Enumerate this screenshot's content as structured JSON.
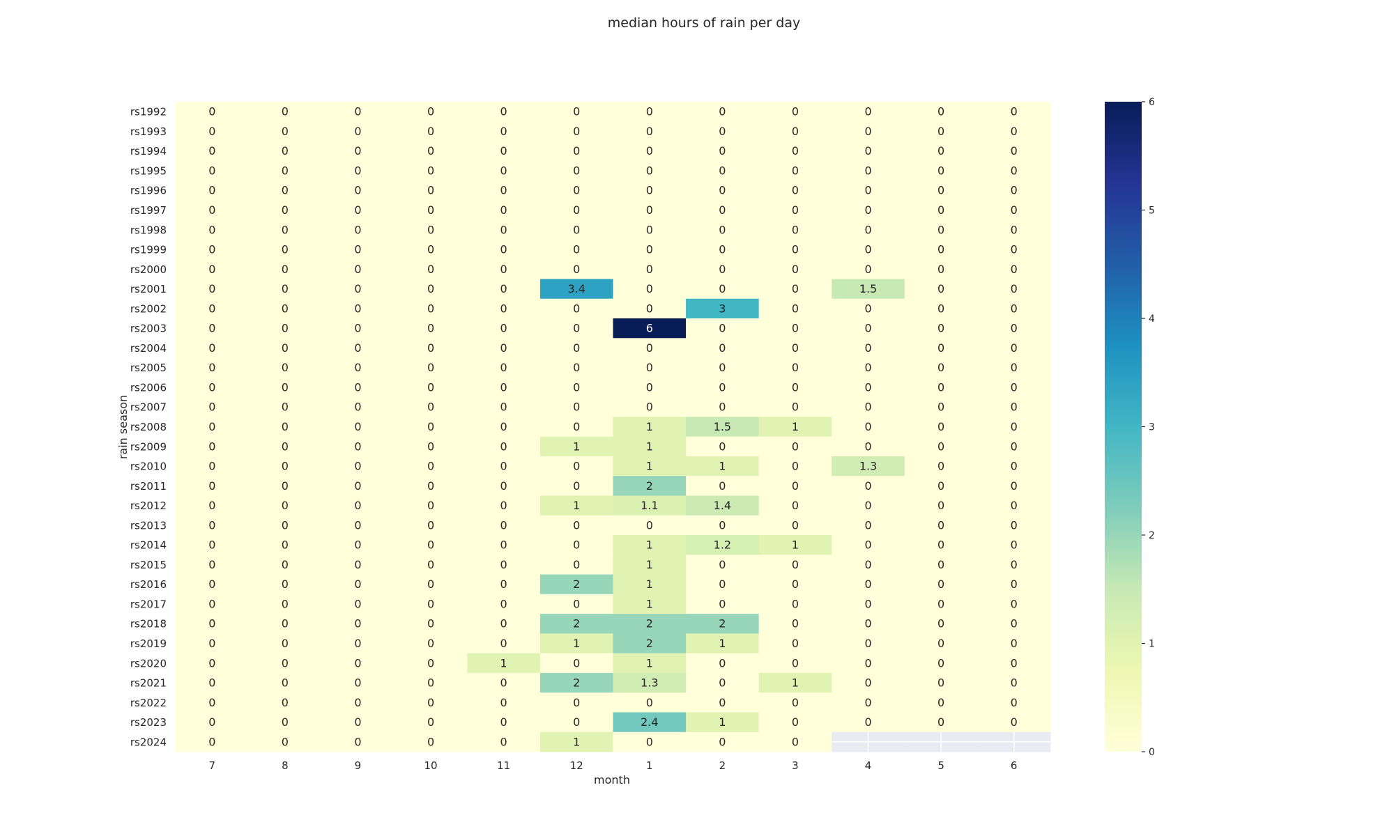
{
  "chart_data": {
    "type": "heatmap",
    "title": "median hours of rain per day",
    "xlabel": "month",
    "ylabel": "rain season",
    "x": [
      "7",
      "8",
      "9",
      "10",
      "11",
      "12",
      "1",
      "2",
      "3",
      "4",
      "5",
      "6"
    ],
    "y": [
      "rs1992",
      "rs1993",
      "rs1994",
      "rs1995",
      "rs1996",
      "rs1997",
      "rs1998",
      "rs1999",
      "rs2000",
      "rs2001",
      "rs2002",
      "rs2003",
      "rs2004",
      "rs2005",
      "rs2006",
      "rs2007",
      "rs2008",
      "rs2009",
      "rs2010",
      "rs2011",
      "rs2012",
      "rs2013",
      "rs2014",
      "rs2015",
      "rs2016",
      "rs2017",
      "rs2018",
      "rs2019",
      "rs2020",
      "rs2021",
      "rs2022",
      "rs2023",
      "rs2024"
    ],
    "values": [
      [
        0,
        0,
        0,
        0,
        0,
        0,
        0,
        0,
        0,
        0,
        0,
        0
      ],
      [
        0,
        0,
        0,
        0,
        0,
        0,
        0,
        0,
        0,
        0,
        0,
        0
      ],
      [
        0,
        0,
        0,
        0,
        0,
        0,
        0,
        0,
        0,
        0,
        0,
        0
      ],
      [
        0,
        0,
        0,
        0,
        0,
        0,
        0,
        0,
        0,
        0,
        0,
        0
      ],
      [
        0,
        0,
        0,
        0,
        0,
        0,
        0,
        0,
        0,
        0,
        0,
        0
      ],
      [
        0,
        0,
        0,
        0,
        0,
        0,
        0,
        0,
        0,
        0,
        0,
        0
      ],
      [
        0,
        0,
        0,
        0,
        0,
        0,
        0,
        0,
        0,
        0,
        0,
        0
      ],
      [
        0,
        0,
        0,
        0,
        0,
        0,
        0,
        0,
        0,
        0,
        0,
        0
      ],
      [
        0,
        0,
        0,
        0,
        0,
        0,
        0,
        0,
        0,
        0,
        0,
        0
      ],
      [
        0,
        0,
        0,
        0,
        0,
        3.4,
        0,
        0,
        0,
        1.5,
        0,
        0
      ],
      [
        0,
        0,
        0,
        0,
        0,
        0,
        0,
        3,
        0,
        0,
        0,
        0
      ],
      [
        0,
        0,
        0,
        0,
        0,
        0,
        6,
        0,
        0,
        0,
        0,
        0
      ],
      [
        0,
        0,
        0,
        0,
        0,
        0,
        0,
        0,
        0,
        0,
        0,
        0
      ],
      [
        0,
        0,
        0,
        0,
        0,
        0,
        0,
        0,
        0,
        0,
        0,
        0
      ],
      [
        0,
        0,
        0,
        0,
        0,
        0,
        0,
        0,
        0,
        0,
        0,
        0
      ],
      [
        0,
        0,
        0,
        0,
        0,
        0,
        0,
        0,
        0,
        0,
        0,
        0
      ],
      [
        0,
        0,
        0,
        0,
        0,
        0,
        1,
        1.5,
        1,
        0,
        0,
        0
      ],
      [
        0,
        0,
        0,
        0,
        0,
        1,
        1,
        0,
        0,
        0,
        0,
        0
      ],
      [
        0,
        0,
        0,
        0,
        0,
        0,
        1,
        1,
        0,
        1.3,
        0,
        0
      ],
      [
        0,
        0,
        0,
        0,
        0,
        0,
        2,
        0,
        0,
        0,
        0,
        0
      ],
      [
        0,
        0,
        0,
        0,
        0,
        1,
        1.1,
        1.4,
        0,
        0,
        0,
        0
      ],
      [
        0,
        0,
        0,
        0,
        0,
        0,
        0,
        0,
        0,
        0,
        0,
        0
      ],
      [
        0,
        0,
        0,
        0,
        0,
        0,
        1,
        1.2,
        1,
        0,
        0,
        0
      ],
      [
        0,
        0,
        0,
        0,
        0,
        0,
        1,
        0,
        0,
        0,
        0,
        0
      ],
      [
        0,
        0,
        0,
        0,
        0,
        2,
        1,
        0,
        0,
        0,
        0,
        0
      ],
      [
        0,
        0,
        0,
        0,
        0,
        0,
        1,
        0,
        0,
        0,
        0,
        0
      ],
      [
        0,
        0,
        0,
        0,
        0,
        2,
        2,
        2,
        0,
        0,
        0,
        0
      ],
      [
        0,
        0,
        0,
        0,
        0,
        1,
        2,
        1,
        0,
        0,
        0,
        0
      ],
      [
        0,
        0,
        0,
        0,
        1,
        0,
        1,
        0,
        0,
        0,
        0,
        0
      ],
      [
        0,
        0,
        0,
        0,
        0,
        2,
        1.3,
        0,
        1,
        0,
        0,
        0
      ],
      [
        0,
        0,
        0,
        0,
        0,
        0,
        0,
        0,
        0,
        0,
        0,
        0
      ],
      [
        0,
        0,
        0,
        0,
        0,
        0,
        2.4,
        1,
        0,
        0,
        0,
        0
      ],
      [
        0,
        0,
        0,
        0,
        0,
        1,
        0,
        0,
        0,
        null,
        null,
        null
      ]
    ],
    "colorbar": {
      "min": 0,
      "max": 6,
      "ticks": [
        "0",
        "1",
        "2",
        "3",
        "4",
        "5",
        "6"
      ],
      "colormap": "YlGnBu"
    },
    "missing_color": "#eaeaf2",
    "grid": false
  }
}
